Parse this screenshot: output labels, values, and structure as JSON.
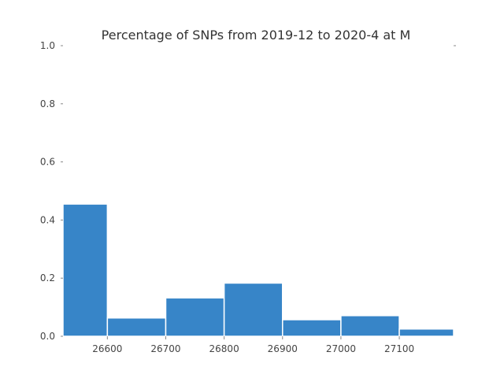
{
  "chart_data": {
    "type": "bar",
    "title": "Percentage of SNPs from 2019-12 to 2020-4 at M",
    "xlabel": "",
    "ylabel": "",
    "xlim": [
      26524,
      27193
    ],
    "ylim": [
      0,
      1.0
    ],
    "grid": false,
    "bins": [
      {
        "start": 26524,
        "end": 26600,
        "value": 0.455
      },
      {
        "start": 26600,
        "end": 26700,
        "value": 0.063
      },
      {
        "start": 26700,
        "end": 26800,
        "value": 0.132
      },
      {
        "start": 26800,
        "end": 26900,
        "value": 0.183
      },
      {
        "start": 26900,
        "end": 27000,
        "value": 0.057
      },
      {
        "start": 27000,
        "end": 27100,
        "value": 0.071
      },
      {
        "start": 27100,
        "end": 27193,
        "value": 0.025
      }
    ],
    "x_ticks": [
      {
        "value": 26600,
        "label": "26600"
      },
      {
        "value": 26700,
        "label": "26700"
      },
      {
        "value": 26800,
        "label": "26800"
      },
      {
        "value": 26900,
        "label": "26900"
      },
      {
        "value": 27000,
        "label": "27000"
      },
      {
        "value": 27100,
        "label": "27100"
      }
    ],
    "y_ticks": [
      {
        "value": 0.0,
        "label": "0.0"
      },
      {
        "value": 0.2,
        "label": "0.2"
      },
      {
        "value": 0.4,
        "label": "0.4"
      },
      {
        "value": 0.6,
        "label": "0.6"
      },
      {
        "value": 0.8,
        "label": "0.8"
      },
      {
        "value": 1.0,
        "label": "1.0"
      }
    ]
  }
}
